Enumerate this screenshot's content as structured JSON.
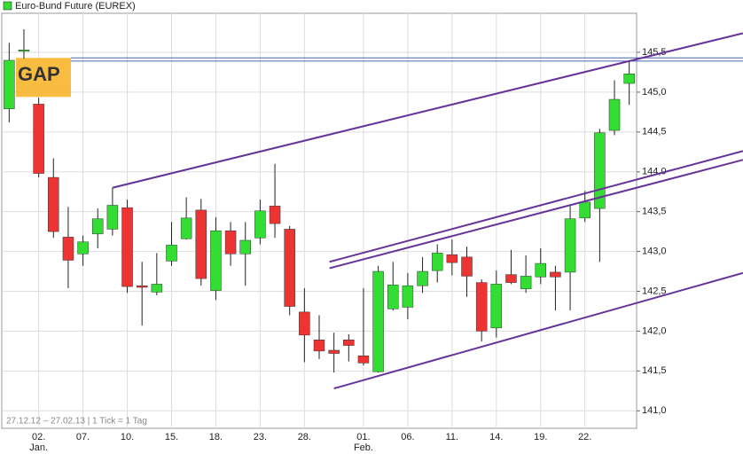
{
  "chart_data": {
    "type": "candlestick",
    "title": "Euro-Bund Future (EUREX)",
    "footnote": "27.12.12 – 27.02.13 | 1 Tick = 1 Tag",
    "annotation": "GAP",
    "categories": [
      null,
      null,
      "02.",
      null,
      null,
      "07.",
      null,
      null,
      "10.",
      null,
      null,
      "15.",
      null,
      null,
      "18.",
      null,
      null,
      "23.",
      null,
      null,
      "28.",
      null,
      null,
      null,
      "01.",
      null,
      null,
      "06.",
      null,
      null,
      "11.",
      null,
      null,
      "14.",
      null,
      null,
      "19.",
      null,
      null,
      "22.",
      null,
      null,
      null
    ],
    "sublabels": [
      null,
      null,
      "Jan.",
      null,
      null,
      null,
      null,
      null,
      null,
      null,
      null,
      null,
      null,
      null,
      null,
      null,
      null,
      null,
      null,
      null,
      null,
      null,
      null,
      null,
      "Feb.",
      null,
      null,
      null,
      null,
      null,
      null,
      null,
      null,
      null,
      null,
      null,
      null,
      null,
      null,
      null,
      null,
      null,
      null
    ],
    "open": [
      144.79,
      145.53,
      144.85,
      143.93,
      143.18,
      142.97,
      143.22,
      143.28,
      143.55,
      142.57,
      142.49,
      142.88,
      143.16,
      143.52,
      142.51,
      143.26,
      142.97,
      143.17,
      143.57,
      143.28,
      142.24,
      141.89,
      141.76,
      141.89,
      141.69,
      141.49,
      142.28,
      142.3,
      142.57,
      142.76,
      142.96,
      142.93,
      142.61,
      142.04,
      142.71,
      142.53,
      142.68,
      142.74,
      142.74,
      143.42,
      143.54,
      144.52,
      145.11
    ],
    "high": [
      145.62,
      145.79,
      144.93,
      144.17,
      143.56,
      143.2,
      143.54,
      143.8,
      143.65,
      142.87,
      142.98,
      143.37,
      143.68,
      143.66,
      143.43,
      143.37,
      143.37,
      143.65,
      144.1,
      143.32,
      142.54,
      142.2,
      141.98,
      141.96,
      142.54,
      142.82,
      142.87,
      142.73,
      142.93,
      143.09,
      143.15,
      143.06,
      142.65,
      142.76,
      143.02,
      142.95,
      143.04,
      142.82,
      143.59,
      143.76,
      144.54,
      145.15,
      145.4
    ],
    "low": [
      144.62,
      145.42,
      143.93,
      143.17,
      142.54,
      142.82,
      143.04,
      143.2,
      142.48,
      142.07,
      142.45,
      142.82,
      143.15,
      142.57,
      142.39,
      142.82,
      142.57,
      143.09,
      143.17,
      142.2,
      141.61,
      141.65,
      141.48,
      141.62,
      141.57,
      141.48,
      142.26,
      142.15,
      142.48,
      142.61,
      142.7,
      142.43,
      141.87,
      141.92,
      142.59,
      142.48,
      142.59,
      142.26,
      142.26,
      143.37,
      142.87,
      144.46,
      144.84
    ],
    "close": [
      145.4,
      145.53,
      143.98,
      143.25,
      142.89,
      143.12,
      143.41,
      143.58,
      142.56,
      142.55,
      142.59,
      143.08,
      143.42,
      142.66,
      143.26,
      142.97,
      143.14,
      143.51,
      143.35,
      142.31,
      141.95,
      141.75,
      141.72,
      141.82,
      141.6,
      142.75,
      142.58,
      142.57,
      142.75,
      142.98,
      142.86,
      142.69,
      142.0,
      142.59,
      142.61,
      142.69,
      142.85,
      142.68,
      143.41,
      143.62,
      144.49,
      144.91,
      145.23
    ],
    "up_color": "#33dd33",
    "down_color": "#ee3333",
    "xlim": [
      -0.5,
      42.5
    ],
    "ylim": [
      140.78,
      145.99
    ],
    "yticks": [
      {
        "value": 141.0,
        "label": "141,0"
      },
      {
        "value": 141.5,
        "label": "141,5"
      },
      {
        "value": 142.0,
        "label": "142,0"
      },
      {
        "value": 142.5,
        "label": "142,5"
      },
      {
        "value": 143.0,
        "label": "143,0"
      },
      {
        "value": 143.5,
        "label": "143,5"
      },
      {
        "value": 144.0,
        "label": "144,0"
      },
      {
        "value": 144.5,
        "label": "144,5"
      },
      {
        "value": 145.0,
        "label": "145,0"
      },
      {
        "value": 145.5,
        "label": "145,5"
      }
    ],
    "grid": true,
    "trendlines": [
      {
        "x": [
          7,
          49.7
        ],
        "y": [
          143.8,
          145.74
        ],
        "color": "#663399"
      },
      {
        "x": [
          21.7,
          49.7
        ],
        "y": [
          142.87,
          144.26
        ],
        "color": "#663399"
      },
      {
        "x": [
          21.7,
          49.7
        ],
        "y": [
          142.79,
          144.15
        ],
        "color": "#663399"
      },
      {
        "x": [
          22,
          49.7
        ],
        "y": [
          141.28,
          142.73
        ],
        "color": "#663399"
      }
    ],
    "hlines": {
      "values": [
        145.43,
        145.39
      ],
      "color": "#4466aa"
    }
  }
}
